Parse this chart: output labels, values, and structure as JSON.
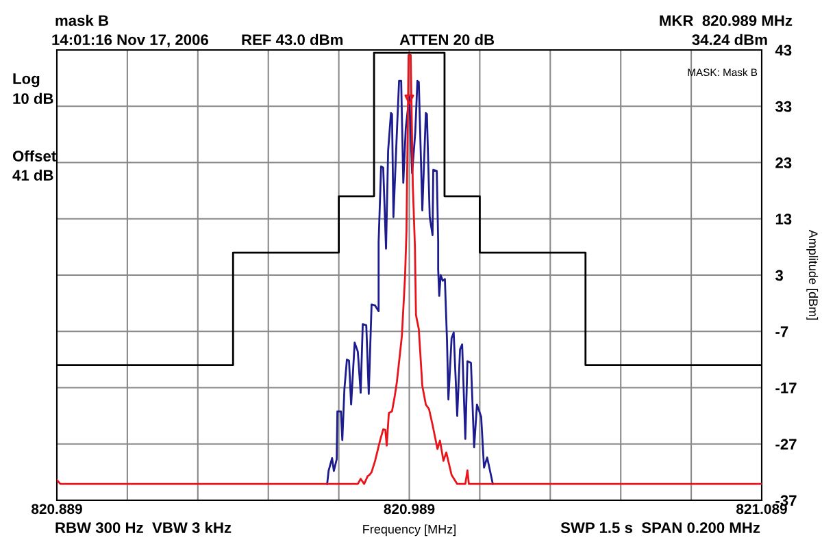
{
  "chart_data": {
    "type": "line",
    "title": "mask B",
    "xlabel": "Frequency [MHz]",
    "ylabel": "Amplitude [dBm]",
    "annotations": [
      "14:01:16 Nov 17, 2006",
      "REF 43.0 dBm",
      "ATTEN 20 dB",
      "MKR  820.989 MHz",
      "34.24 dBm",
      "MASK: Mask B",
      "Log",
      "10 dB",
      "Offset",
      "41 dB",
      "RBW 300 Hz  VBW 3 kHz",
      "SWP 1.5 s  SPAN 0.200 MHz"
    ],
    "xlim": [
      820.889,
      821.089
    ],
    "xticks": [
      820.889,
      {
        "value": 820.909,
        "label": null
      },
      {
        "value": 820.929,
        "label": null
      },
      {
        "value": 820.949,
        "label": null
      },
      {
        "value": 820.969,
        "label": null
      },
      820.989,
      {
        "value": 821.009,
        "label": null
      },
      {
        "value": 821.029,
        "label": null
      },
      {
        "value": 821.049,
        "label": null
      },
      {
        "value": 821.069,
        "label": null
      },
      821.089
    ],
    "ylim": [
      -37,
      43
    ],
    "yticks": [
      43,
      33,
      23,
      13,
      3,
      -7,
      -17,
      -27,
      -37
    ],
    "grid": true,
    "legend": false,
    "marker": "none",
    "line_style": "solid",
    "series": [
      {
        "type": "step",
        "color": "#000000",
        "x": [
          820.889,
          820.939,
          820.969,
          820.979,
          820.999,
          821.009,
          821.039,
          821.089
        ],
        "values": [
          -13,
          7,
          17,
          42.5,
          17,
          7,
          -13,
          -13
        ]
      },
      {
        "color": "#1c1c8e",
        "x": [
          820.9657,
          820.9661,
          820.9671,
          820.9676,
          820.9684,
          820.9686,
          820.9696,
          820.97,
          820.9706,
          820.9713,
          820.9719,
          820.9725,
          820.9735,
          820.9744,
          820.9752,
          820.9758,
          820.9768,
          820.9775,
          820.9783,
          820.9793,
          820.9803,
          820.9803,
          820.981,
          820.9816,
          820.9824,
          820.983,
          820.9838,
          820.9841,
          820.9845,
          820.9855,
          820.9861,
          820.9867,
          820.9873,
          820.988,
          820.989,
          820.9898,
          820.9907,
          820.9913,
          820.9917,
          820.9927,
          820.9937,
          820.994,
          820.9948,
          820.9956,
          820.9958,
          820.9968,
          820.9972,
          820.9972,
          820.9975,
          820.9979,
          820.9985,
          820.9991,
          820.9997,
          821.0001,
          821.001,
          821.0016,
          821.0026,
          821.0034,
          821.004,
          821.0049,
          821.0055,
          821.0065,
          821.0074,
          821.0082,
          821.0094,
          821.0102,
          821.0111,
          821.0127
        ],
        "values": [
          -34.1,
          -31.8,
          -29.5,
          -31.8,
          -29.7,
          -21.2,
          -21.2,
          -26.3,
          -17.2,
          -12,
          -12.2,
          -20,
          -9,
          -10.6,
          -17.9,
          -5.7,
          -5.9,
          -18.1,
          -2.2,
          -2.4,
          -3.4,
          8.9,
          22.3,
          22.1,
          7.7,
          25.1,
          31.8,
          31.6,
          13.3,
          28.7,
          37.5,
          37.5,
          19.4,
          29.1,
          34.8,
          21.1,
          28.4,
          37.5,
          37.3,
          14.5,
          31.8,
          31.6,
          13.3,
          10.1,
          21.7,
          21.5,
          8.9,
          4,
          -0.7,
          3,
          2,
          2.3,
          -8.6,
          -19.1,
          -8.2,
          -7.2,
          -22,
          -10.2,
          -9.3,
          -26.1,
          -12.3,
          -12.6,
          -27.6,
          -20,
          -22.2,
          -31.2,
          -29.4,
          -34.1
        ]
      },
      {
        "color": "#e8141c",
        "x": [
          820.889,
          820.89,
          820.9744,
          820.9752,
          820.9762,
          820.9772,
          820.9777,
          820.9783,
          820.9793,
          820.9807,
          820.9816,
          820.9822,
          820.9826,
          820.9832,
          820.9841,
          820.9849,
          820.9855,
          820.9869,
          820.9878,
          820.9882,
          820.9888,
          820.9894,
          820.99,
          820.9906,
          820.9909,
          820.9917,
          820.9927,
          820.9937,
          820.9946,
          820.9956,
          820.997,
          820.9977,
          820.9987,
          820.9995,
          821.001,
          821.0026,
          821.0049,
          821.0055,
          821.0059,
          821.089
        ],
        "values": [
          -33.4,
          -34.1,
          -34.1,
          -33.2,
          -34.1,
          -32.7,
          -32.5,
          -32,
          -30,
          -26.4,
          -24.4,
          -24.5,
          -27.3,
          -21.5,
          -21.2,
          -18.4,
          -15.9,
          -7.8,
          2.8,
          10.8,
          42.1,
          42.1,
          19,
          8,
          -4.1,
          -6.6,
          -16.7,
          -20,
          -20.8,
          -23.6,
          -27.9,
          -26.4,
          -30,
          -28.5,
          -32.5,
          -34.1,
          -34.1,
          -31.7,
          -34.1,
          -34.1
        ]
      },
      {
        "type": "scatter",
        "color": "#e8141c",
        "marker": "triangle",
        "x": [
          820.989
        ],
        "values": [
          34.2
        ]
      }
    ]
  }
}
